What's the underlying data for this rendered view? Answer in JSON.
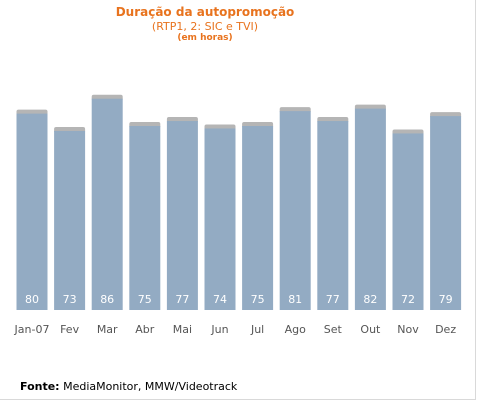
{
  "chart_data": {
    "type": "bar",
    "title": "Duração da autopromoção",
    "subtitle": "(RTP1, 2: SIC e TVI)",
    "unit_label": "(em horas)",
    "categories": [
      "Jan-07",
      "Fev",
      "Mar",
      "Abr",
      "Mai",
      "Jun",
      "Jul",
      "Ago",
      "Set",
      "Out",
      "Nov",
      "Dez"
    ],
    "values": [
      80,
      73,
      86,
      75,
      77,
      74,
      75,
      81,
      77,
      82,
      72,
      79
    ],
    "bar_color": "#93abc3",
    "bar_top_color": "#b5b5b5",
    "label_color": "#ffffff",
    "grid": false
  },
  "footer": {
    "source_label": "Fonte:",
    "source_text": "MediaMonitor, MMW/Videotrack"
  }
}
